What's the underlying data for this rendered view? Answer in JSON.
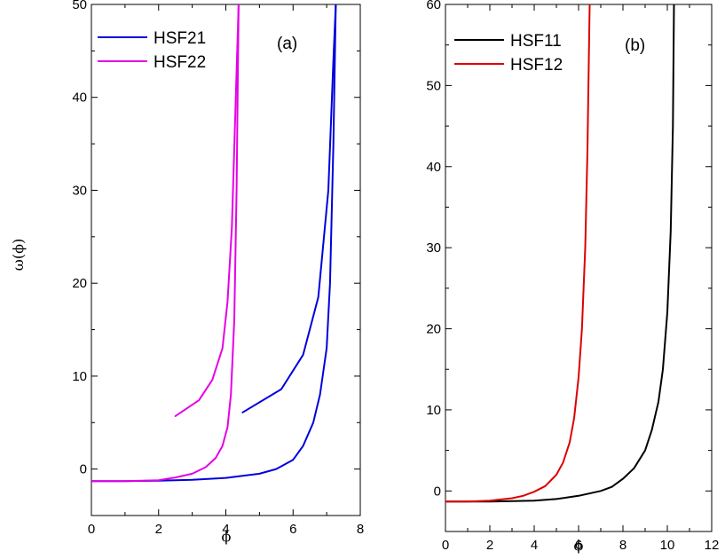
{
  "chart_data": [
    {
      "type": "line",
      "panel_label": "(a)",
      "xlabel": "ϕ",
      "ylabel": "ω(ϕ)",
      "xlim": [
        0,
        8
      ],
      "ylim": [
        -5,
        50
      ],
      "xticks": [
        0,
        2,
        4,
        6,
        8
      ],
      "yticks": [
        0,
        10,
        20,
        30,
        40,
        50
      ],
      "legend_position": "top-left",
      "series": [
        {
          "name": "HSF21",
          "color": "#0000dd",
          "segments": [
            [
              [
                0,
                -1.3
              ],
              [
                1,
                -1.3
              ],
              [
                2,
                -1.25
              ],
              [
                3,
                -1.15
              ],
              [
                4,
                -0.95
              ],
              [
                5,
                -0.5
              ],
              [
                5.5,
                0
              ],
              [
                6,
                1
              ],
              [
                6.3,
                2.5
              ],
              [
                6.6,
                5
              ],
              [
                6.8,
                8
              ],
              [
                7.0,
                13
              ],
              [
                7.1,
                20
              ],
              [
                7.2,
                35
              ],
              [
                7.27,
                50
              ]
            ],
            [
              [
                4.5,
                6.1
              ],
              [
                5.65,
                8.6
              ],
              [
                6.3,
                12.3
              ],
              [
                6.75,
                18.5
              ],
              [
                7.05,
                30
              ],
              [
                7.2,
                44
              ],
              [
                7.27,
                50
              ]
            ]
          ]
        },
        {
          "name": "HSF22",
          "color": "#e600e6",
          "segments": [
            [
              [
                0,
                -1.3
              ],
              [
                1,
                -1.3
              ],
              [
                2,
                -1.2
              ],
              [
                2.5,
                -0.9
              ],
              [
                3,
                -0.5
              ],
              [
                3.4,
                0.2
              ],
              [
                3.7,
                1.2
              ],
              [
                3.9,
                2.5
              ],
              [
                4.05,
                4.5
              ],
              [
                4.15,
                8
              ],
              [
                4.25,
                16
              ],
              [
                4.32,
                30
              ],
              [
                4.38,
                50
              ]
            ],
            [
              [
                2.5,
                5.7
              ],
              [
                3.2,
                7.4
              ],
              [
                3.6,
                9.6
              ],
              [
                3.9,
                13
              ],
              [
                4.05,
                18
              ],
              [
                4.18,
                26
              ],
              [
                4.28,
                38
              ],
              [
                4.38,
                50
              ]
            ]
          ]
        }
      ]
    },
    {
      "type": "line",
      "panel_label": "(b)",
      "xlabel": "ϕ",
      "ylabel": "",
      "xlim": [
        0,
        12
      ],
      "ylim": [
        -5,
        60
      ],
      "xticks": [
        0,
        2,
        4,
        6,
        8,
        10,
        12
      ],
      "yticks": [
        0,
        10,
        20,
        30,
        40,
        50,
        60
      ],
      "legend_position": "top-left",
      "series": [
        {
          "name": "HSF11",
          "color": "#000000",
          "segments": [
            [
              [
                0,
                -1.3
              ],
              [
                2,
                -1.3
              ],
              [
                4,
                -1.2
              ],
              [
                5,
                -1.0
              ],
              [
                6,
                -0.6
              ],
              [
                7,
                0
              ],
              [
                7.5,
                0.5
              ],
              [
                8,
                1.5
              ],
              [
                8.5,
                2.8
              ],
              [
                9,
                5
              ],
              [
                9.3,
                7.5
              ],
              [
                9.6,
                11
              ],
              [
                9.8,
                15
              ],
              [
                10,
                22
              ],
              [
                10.15,
                32
              ],
              [
                10.25,
                45
              ],
              [
                10.3,
                60
              ]
            ]
          ]
        },
        {
          "name": "HSF12",
          "color": "#dd0000",
          "segments": [
            [
              [
                0,
                -1.3
              ],
              [
                1,
                -1.3
              ],
              [
                2,
                -1.2
              ],
              [
                3,
                -0.9
              ],
              [
                3.5,
                -0.6
              ],
              [
                4,
                -0.1
              ],
              [
                4.5,
                0.6
              ],
              [
                5,
                2
              ],
              [
                5.3,
                3.5
              ],
              [
                5.6,
                6
              ],
              [
                5.8,
                9
              ],
              [
                6.0,
                14
              ],
              [
                6.15,
                20
              ],
              [
                6.3,
                30
              ],
              [
                6.4,
                42
              ],
              [
                6.5,
                60
              ]
            ]
          ]
        }
      ]
    }
  ]
}
